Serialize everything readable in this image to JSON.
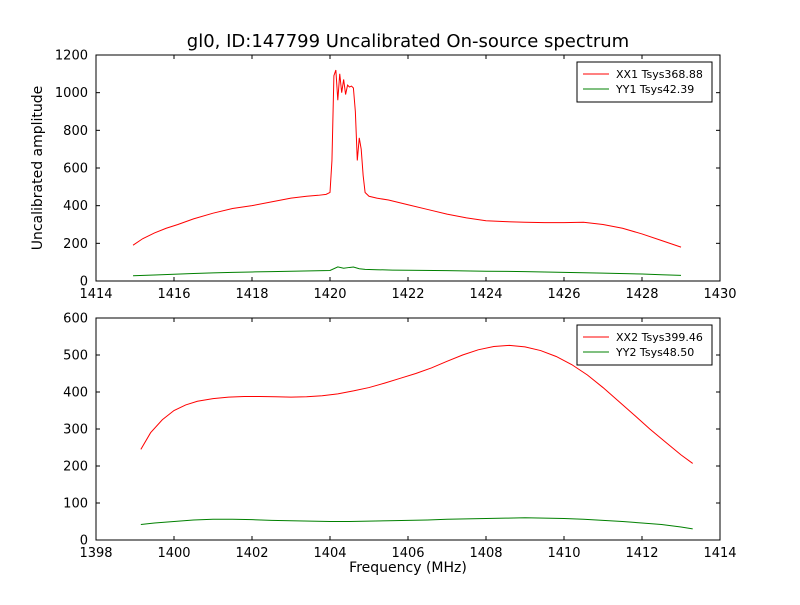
{
  "colors": {
    "background": "#ffffff",
    "axes": "#000000",
    "series_red": "#ff0000",
    "series_green": "#008000"
  },
  "chart_data": [
    {
      "type": "line",
      "title": "gl0, ID:147799 Uncalibrated On-source spectrum",
      "xlabel": "",
      "ylabel": "Uncalibrated amplitude",
      "xlim": [
        1414,
        1430
      ],
      "ylim": [
        0,
        1200
      ],
      "xticks": [
        1414,
        1416,
        1418,
        1420,
        1422,
        1424,
        1426,
        1428,
        1430
      ],
      "yticks": [
        0,
        200,
        400,
        600,
        800,
        1000,
        1200
      ],
      "grid": false,
      "legend_position": "upper right",
      "series": [
        {
          "name": "XX1 Tsys368.88",
          "color": "#ff0000",
          "x": [
            1414.95,
            1415.2,
            1415.5,
            1415.8,
            1416.1,
            1416.5,
            1417.0,
            1417.5,
            1418.0,
            1418.5,
            1419.0,
            1419.4,
            1419.7,
            1419.9,
            1420.0,
            1420.05,
            1420.1,
            1420.15,
            1420.2,
            1420.25,
            1420.3,
            1420.35,
            1420.4,
            1420.45,
            1420.5,
            1420.55,
            1420.6,
            1420.65,
            1420.7,
            1420.75,
            1420.8,
            1420.85,
            1420.9,
            1421.0,
            1421.2,
            1421.5,
            1422.0,
            1422.5,
            1423.0,
            1423.5,
            1424.0,
            1424.5,
            1425.0,
            1425.5,
            1426.0,
            1426.5,
            1427.0,
            1427.5,
            1428.0,
            1428.5,
            1429.0
          ],
          "y": [
            190,
            225,
            255,
            280,
            300,
            330,
            360,
            385,
            400,
            420,
            440,
            450,
            455,
            460,
            470,
            640,
            1090,
            1120,
            960,
            1100,
            1000,
            1070,
            990,
            1040,
            1030,
            1035,
            1025,
            900,
            640,
            760,
            700,
            560,
            470,
            450,
            440,
            430,
            405,
            380,
            355,
            335,
            320,
            315,
            312,
            310,
            310,
            312,
            300,
            280,
            250,
            215,
            180
          ]
        },
        {
          "name": "YY1 Tsys42.39",
          "color": "#008000",
          "x": [
            1414.95,
            1415.5,
            1416.0,
            1416.5,
            1417.0,
            1417.5,
            1418.0,
            1418.5,
            1419.0,
            1419.5,
            1420.0,
            1420.2,
            1420.35,
            1420.5,
            1420.6,
            1420.75,
            1420.9,
            1421.2,
            1421.6,
            1422.0,
            1423.0,
            1424.0,
            1425.0,
            1426.0,
            1427.0,
            1428.0,
            1428.5,
            1429.0
          ],
          "y": [
            28,
            32,
            36,
            40,
            43,
            46,
            48,
            50,
            52,
            54,
            56,
            75,
            68,
            72,
            74,
            65,
            62,
            60,
            58,
            57,
            55,
            52,
            50,
            46,
            42,
            37,
            33,
            30
          ]
        }
      ]
    },
    {
      "type": "line",
      "title": "",
      "xlabel": "Frequency (MHz)",
      "ylabel": "",
      "xlim": [
        1398,
        1414
      ],
      "ylim": [
        0,
        600
      ],
      "xticks": [
        1398,
        1400,
        1402,
        1404,
        1406,
        1408,
        1410,
        1412,
        1414
      ],
      "yticks": [
        0,
        100,
        200,
        300,
        400,
        500,
        600
      ],
      "grid": false,
      "legend_position": "upper right",
      "series": [
        {
          "name": "XX2 Tsys399.46",
          "color": "#ff0000",
          "x": [
            1399.15,
            1399.4,
            1399.7,
            1400.0,
            1400.3,
            1400.6,
            1401.0,
            1401.4,
            1401.8,
            1402.2,
            1402.6,
            1403.0,
            1403.4,
            1403.8,
            1404.2,
            1404.6,
            1405.0,
            1405.4,
            1405.8,
            1406.2,
            1406.6,
            1407.0,
            1407.4,
            1407.8,
            1408.2,
            1408.6,
            1409.0,
            1409.4,
            1409.8,
            1410.2,
            1410.6,
            1411.0,
            1411.4,
            1411.8,
            1412.2,
            1412.6,
            1413.0,
            1413.3
          ],
          "y": [
            245,
            290,
            325,
            350,
            365,
            375,
            382,
            386,
            388,
            388,
            387,
            386,
            387,
            390,
            395,
            403,
            412,
            424,
            437,
            450,
            465,
            483,
            500,
            514,
            523,
            526,
            522,
            512,
            496,
            474,
            446,
            412,
            375,
            338,
            300,
            265,
            230,
            207
          ]
        },
        {
          "name": "YY2 Tsys48.50",
          "color": "#008000",
          "x": [
            1399.15,
            1399.5,
            1400.0,
            1400.5,
            1401.0,
            1401.5,
            1402.0,
            1402.5,
            1403.0,
            1403.5,
            1404.0,
            1404.5,
            1405.0,
            1405.5,
            1406.0,
            1406.5,
            1407.0,
            1407.5,
            1408.0,
            1408.5,
            1409.0,
            1409.5,
            1410.0,
            1410.5,
            1411.0,
            1411.5,
            1412.0,
            1412.5,
            1413.0,
            1413.3
          ],
          "y": [
            42,
            46,
            50,
            54,
            56,
            56,
            55,
            53,
            52,
            51,
            50,
            50,
            51,
            52,
            53,
            54,
            56,
            57,
            58,
            59,
            60,
            59,
            58,
            56,
            53,
            50,
            46,
            42,
            35,
            30
          ]
        }
      ]
    }
  ]
}
